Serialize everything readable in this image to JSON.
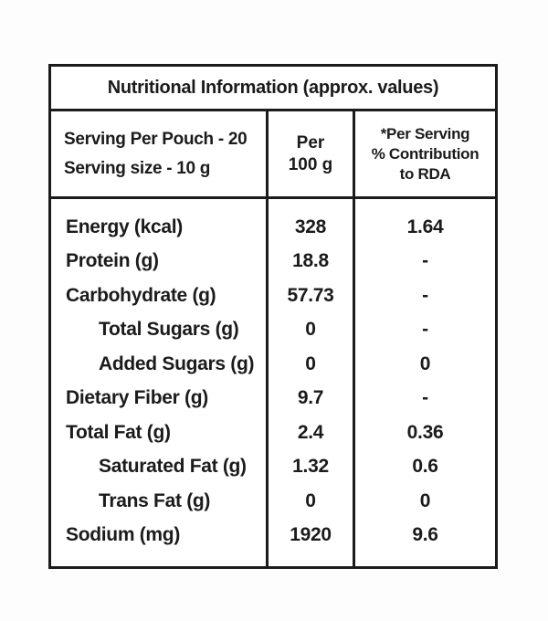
{
  "title": "Nutritional Information (approx. values)",
  "header": {
    "serving_lines": [
      "Serving Per Pouch - 20",
      "Serving size - 10 g"
    ],
    "per100_lines": [
      "Per",
      "100 g"
    ],
    "rda_lines": [
      "*Per Serving",
      "% Contribution",
      "to RDA"
    ]
  },
  "rows": [
    {
      "label": "Energy (kcal)",
      "indent": false,
      "per100": "328",
      "rda": "1.64"
    },
    {
      "label": "Protein (g)",
      "indent": false,
      "per100": "18.8",
      "rda": "-"
    },
    {
      "label": "Carbohydrate (g)",
      "indent": false,
      "per100": "57.73",
      "rda": "-"
    },
    {
      "label": "Total Sugars (g)",
      "indent": true,
      "per100": "0",
      "rda": "-"
    },
    {
      "label": "Added Sugars (g)",
      "indent": true,
      "per100": "0",
      "rda": "0"
    },
    {
      "label": "Dietary Fiber (g)",
      "indent": false,
      "per100": "9.7",
      "rda": "-"
    },
    {
      "label": "Total Fat (g)",
      "indent": false,
      "per100": "2.4",
      "rda": "0.36"
    },
    {
      "label": "Saturated Fat (g)",
      "indent": true,
      "per100": "1.32",
      "rda": "0.6"
    },
    {
      "label": "Trans Fat (g)",
      "indent": true,
      "per100": "0",
      "rda": "0"
    },
    {
      "label": "Sodium (mg)",
      "indent": false,
      "per100": "1920",
      "rda": "9.6"
    }
  ],
  "colors": {
    "border": "#1b1b1b",
    "text": "#1b1b1b",
    "table_background": "#ffffff",
    "page_background": "#fdfdfd"
  }
}
